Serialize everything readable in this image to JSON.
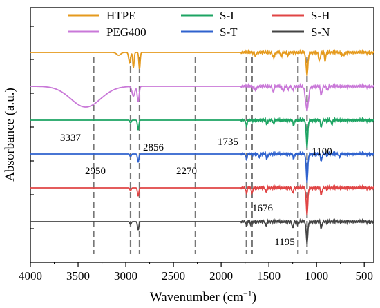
{
  "chart_data": {
    "type": "line",
    "x_axis": {
      "label": "Wavenumber (cm",
      "label_sup": "−1",
      "label_close": ")",
      "range": [
        4000,
        400
      ],
      "reversed": true,
      "ticks": [
        4000,
        3500,
        3000,
        2500,
        2000,
        1500,
        1000,
        500
      ]
    },
    "y_axis": {
      "label": "Absorbance (a.u.)",
      "tick_labels": false
    },
    "legend": {
      "placement": "top",
      "columns": 3,
      "entries": [
        {
          "name": "HTPE",
          "color": "#E59A1D"
        },
        {
          "name": "S-I",
          "color": "#1DA463"
        },
        {
          "name": "S-H",
          "color": "#E04545"
        },
        {
          "name": "PEG400",
          "color": "#C978D8"
        },
        {
          "name": "S-T",
          "color": "#2F62CE"
        },
        {
          "name": "S-N",
          "color": "#444444"
        }
      ]
    },
    "reference_lines": [
      3337,
      2950,
      2856,
      2270,
      1735,
      1676,
      1195,
      1100
    ],
    "annotations": [
      "3337",
      "2856",
      "1735",
      "1100",
      "2950",
      "2270",
      "1676",
      "1195"
    ],
    "series": [
      {
        "name": "HTPE",
        "color": "#E59A1D",
        "baseline": 0.0,
        "peaks": [
          [
            3075,
            4,
            30
          ],
          [
            2960,
            14,
            14
          ],
          [
            2920,
            22,
            10
          ],
          [
            2856,
            24,
            10
          ],
          [
            1640,
            5,
            10
          ],
          [
            1450,
            7,
            16
          ],
          [
            1370,
            5,
            10
          ],
          [
            1300,
            4,
            12
          ],
          [
            1100,
            32,
            14
          ],
          [
            970,
            12,
            12
          ],
          [
            910,
            14,
            8
          ],
          [
            720,
            4,
            20
          ]
        ]
      },
      {
        "name": "PEG400",
        "color": "#C978D8",
        "baseline": 1.0,
        "peaks": [
          [
            3420,
            30,
            220
          ],
          [
            2920,
            14,
            20
          ],
          [
            2870,
            22,
            14
          ],
          [
            1645,
            4,
            20
          ],
          [
            1455,
            8,
            12
          ],
          [
            1350,
            7,
            12
          ],
          [
            1295,
            5,
            10
          ],
          [
            1250,
            6,
            10
          ],
          [
            1100,
            34,
            22
          ],
          [
            950,
            12,
            12
          ],
          [
            885,
            6,
            10
          ]
        ]
      },
      {
        "name": "S-I",
        "color": "#1DA463",
        "baseline": 2.0,
        "peaks": [
          [
            2950,
            4,
            10
          ],
          [
            2870,
            14,
            10
          ],
          [
            1735,
            9,
            8
          ],
          [
            1520,
            6,
            10
          ],
          [
            1450,
            5,
            10
          ],
          [
            1240,
            7,
            10
          ],
          [
            1100,
            38,
            12
          ],
          [
            950,
            10,
            10
          ],
          [
            840,
            6,
            10
          ]
        ]
      },
      {
        "name": "S-T",
        "color": "#2F62CE",
        "baseline": 3.0,
        "peaks": [
          [
            2950,
            4,
            10
          ],
          [
            2870,
            12,
            10
          ],
          [
            1735,
            8,
            8
          ],
          [
            1600,
            5,
            10
          ],
          [
            1520,
            7,
            10
          ],
          [
            1240,
            6,
            10
          ],
          [
            1100,
            40,
            12
          ],
          [
            950,
            10,
            10
          ],
          [
            760,
            5,
            10
          ]
        ]
      },
      {
        "name": "S-H",
        "color": "#E04545",
        "baseline": 4.0,
        "peaks": [
          [
            2950,
            4,
            10
          ],
          [
            2870,
            12,
            10
          ],
          [
            1735,
            8,
            8
          ],
          [
            1676,
            8,
            8
          ],
          [
            1530,
            6,
            10
          ],
          [
            1250,
            7,
            10
          ],
          [
            1100,
            38,
            12
          ],
          [
            950,
            10,
            10
          ]
        ]
      },
      {
        "name": "S-N",
        "color": "#444444",
        "baseline": 5.0,
        "peaks": [
          [
            2950,
            4,
            10
          ],
          [
            2870,
            12,
            10
          ],
          [
            1735,
            6,
            8
          ],
          [
            1690,
            5,
            8
          ],
          [
            1530,
            6,
            10
          ],
          [
            1250,
            9,
            10
          ],
          [
            1195,
            6,
            8
          ],
          [
            1100,
            30,
            12
          ],
          [
            950,
            9,
            10
          ]
        ]
      }
    ]
  }
}
